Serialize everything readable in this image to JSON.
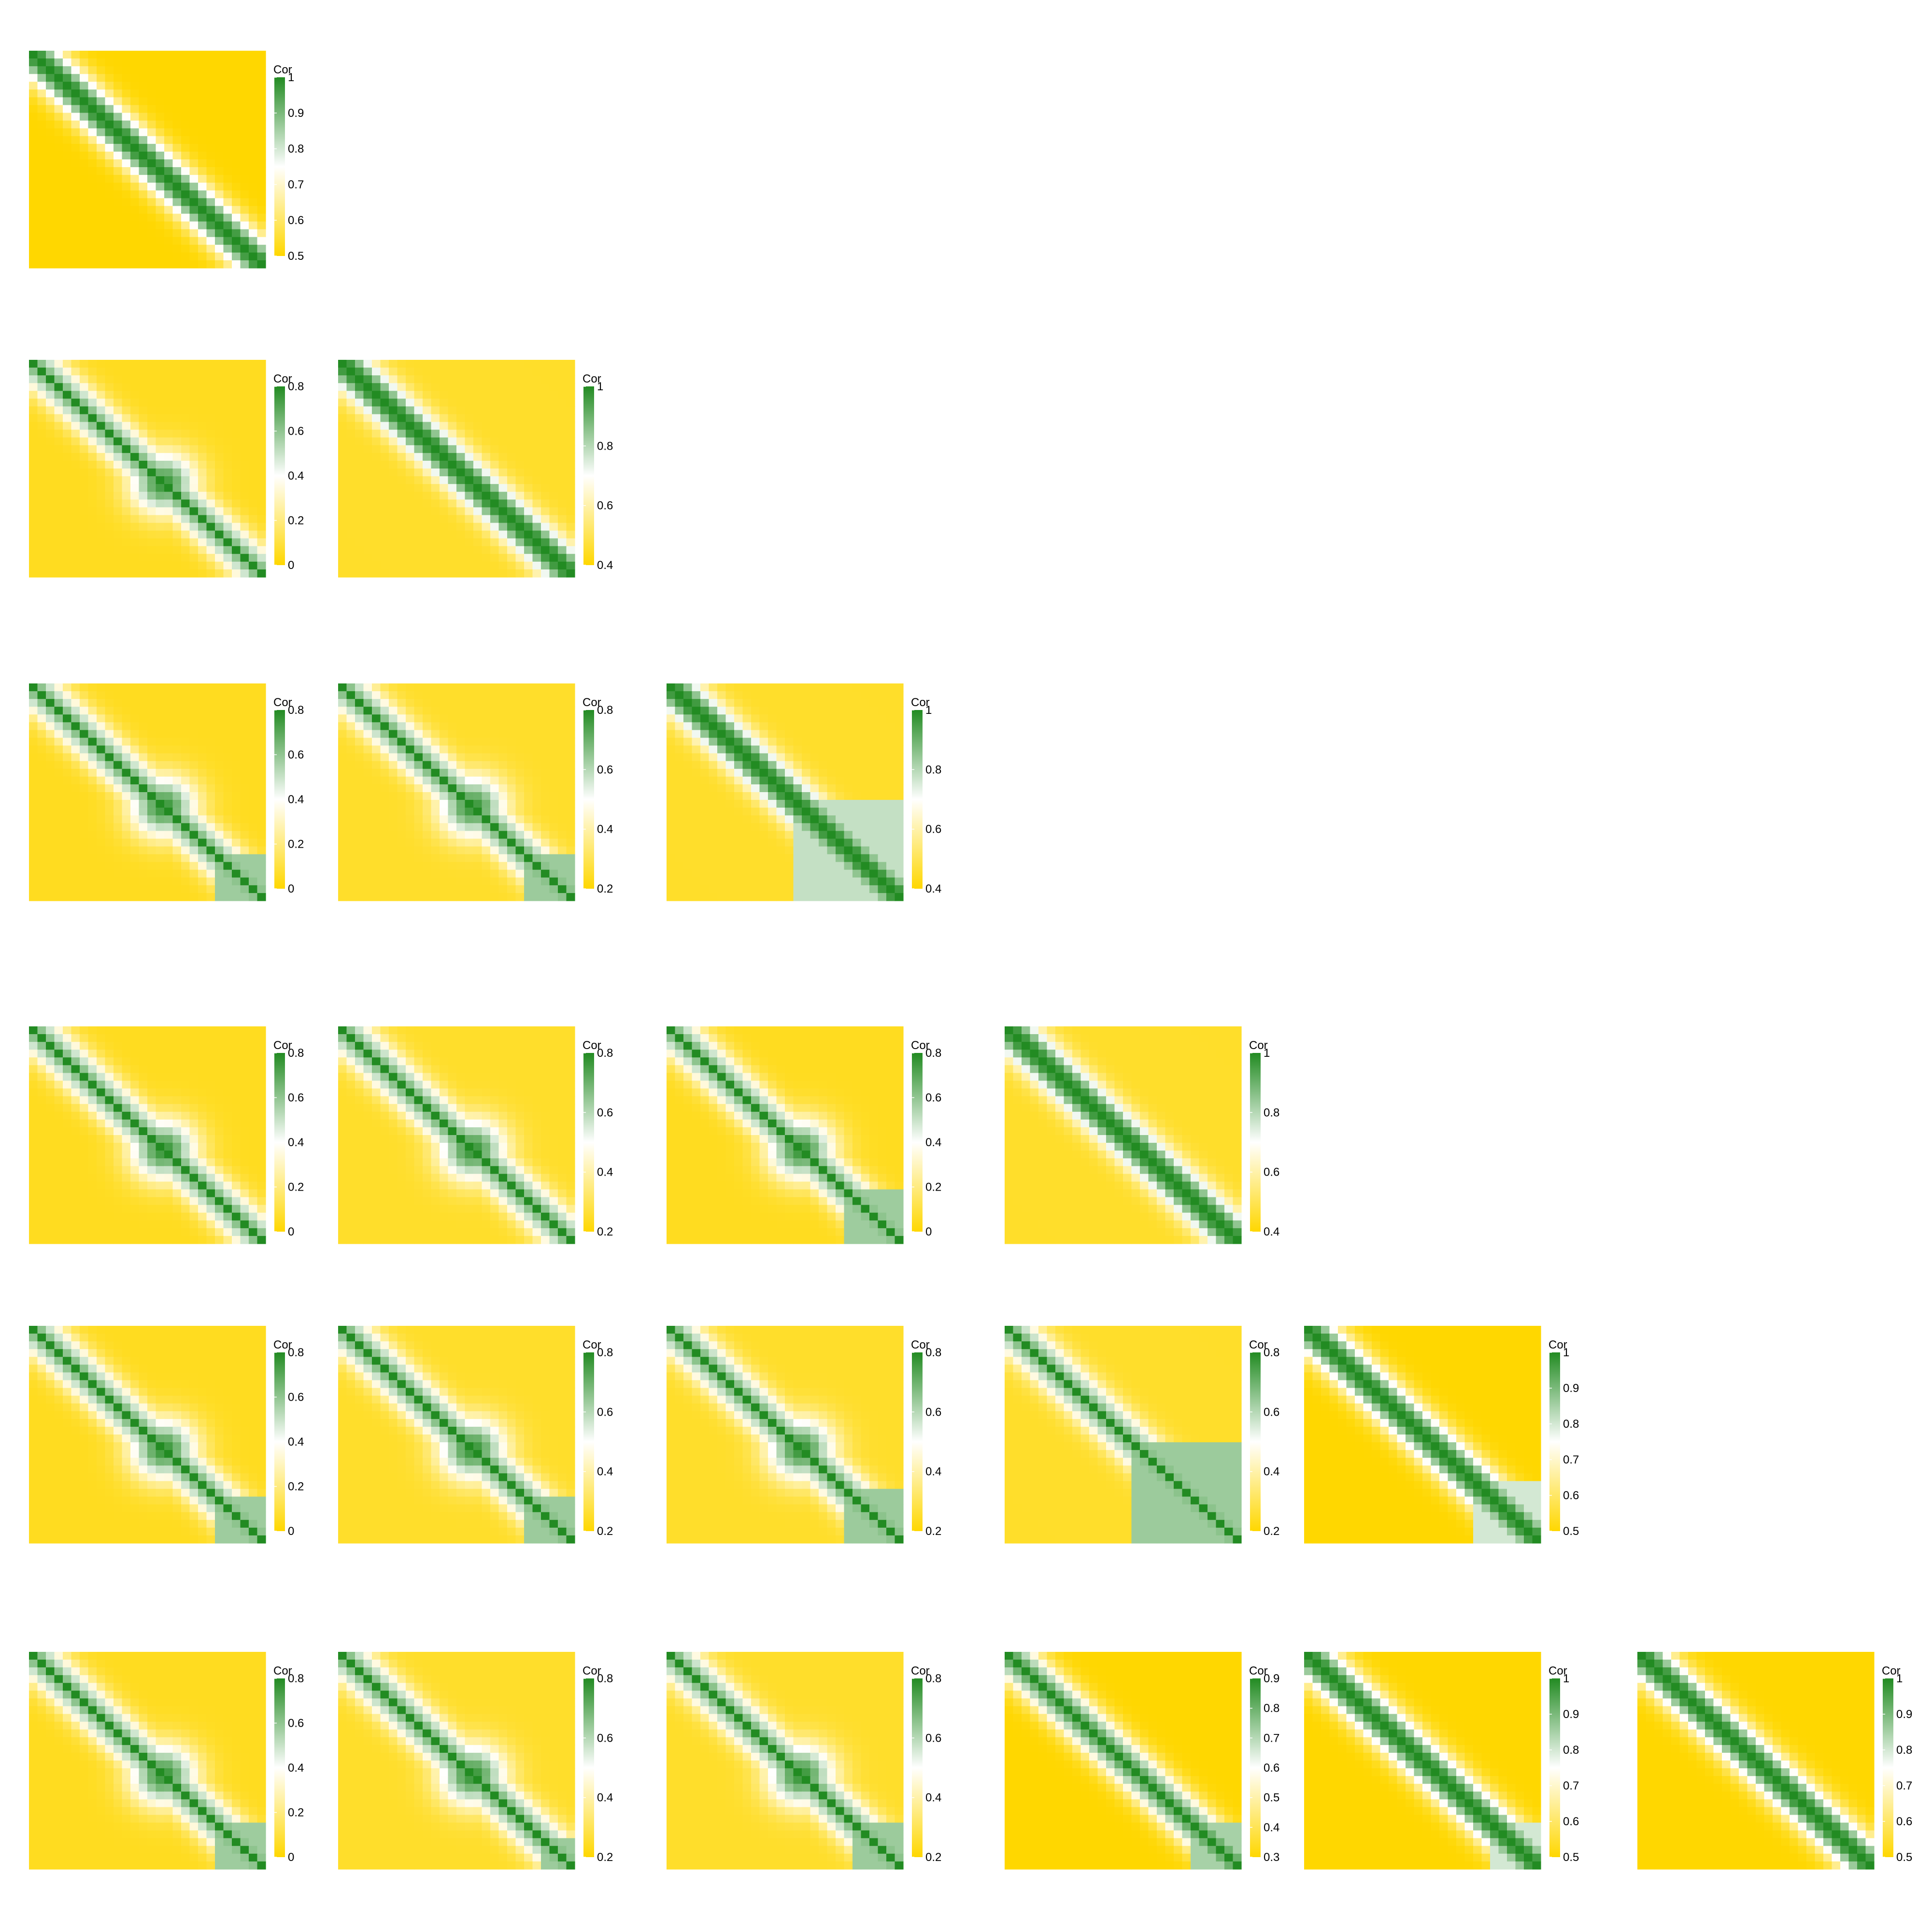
{
  "colors": {
    "low": "#ffd700",
    "mid": "#ffffff",
    "high": "#228b22"
  },
  "legend_title": "Cor",
  "chart_data": [
    {
      "type": "heatmap",
      "row": 1,
      "col": 1,
      "legend_ticks": [
        "0.5",
        "0.6",
        "0.7",
        "0.8",
        "0.9",
        "1"
      ],
      "scale": [
        0.5,
        1
      ],
      "min_corr": 0.5,
      "width": 0.12,
      "contrast": 1,
      "dominant": 0,
      "lower": 0.6,
      "off_split": 0
    },
    {
      "type": "heatmap",
      "row": 2,
      "col": 1,
      "legend_ticks": [
        "0",
        "0.2",
        "0.4",
        "0.6",
        "0.8"
      ],
      "scale": [
        0,
        0.8
      ],
      "min_corr": 0.05,
      "width": 0.12,
      "contrast": 0.8,
      "dominant": 0.55,
      "lower": 0.7,
      "off_split": 0
    },
    {
      "type": "heatmap",
      "row": 2,
      "col": 2,
      "legend_ticks": [
        "0.4",
        "0.6",
        "0.8",
        "1"
      ],
      "scale": [
        0.4,
        1
      ],
      "min_corr": 0.45,
      "width": 0.12,
      "contrast": 1,
      "dominant": 0,
      "lower": 0.6,
      "off_split": 0
    },
    {
      "type": "heatmap",
      "row": 3,
      "col": 1,
      "legend_ticks": [
        "0",
        "0.2",
        "0.4",
        "0.6",
        "0.8"
      ],
      "scale": [
        0,
        0.8
      ],
      "min_corr": 0.05,
      "width": 0.12,
      "contrast": 0.8,
      "dominant": 0.55,
      "lower": 0.7,
      "off_split": 0.8
    },
    {
      "type": "heatmap",
      "row": 3,
      "col": 2,
      "legend_ticks": [
        "0.2",
        "0.4",
        "0.6",
        "0.8"
      ],
      "scale": [
        0.2,
        0.8
      ],
      "min_corr": 0.25,
      "width": 0.12,
      "contrast": 0.8,
      "dominant": 0.55,
      "lower": 0.7,
      "off_split": 0.8
    },
    {
      "type": "heatmap",
      "row": 3,
      "col": 3,
      "legend_ticks": [
        "0.4",
        "0.6",
        "0.8",
        "1"
      ],
      "scale": [
        0.4,
        1
      ],
      "min_corr": 0.45,
      "width": 0.12,
      "contrast": 1,
      "dominant": 0,
      "lower": 0.6,
      "off_split": 0.55
    },
    {
      "type": "heatmap",
      "row": 4,
      "col": 1,
      "legend_ticks": [
        "0",
        "0.2",
        "0.4",
        "0.6",
        "0.8"
      ],
      "scale": [
        0,
        0.8
      ],
      "min_corr": 0.05,
      "width": 0.12,
      "contrast": 0.8,
      "dominant": 0.55,
      "lower": 0.7,
      "off_split": 0
    },
    {
      "type": "heatmap",
      "row": 4,
      "col": 2,
      "legend_ticks": [
        "0.2",
        "0.4",
        "0.6",
        "0.8"
      ],
      "scale": [
        0.2,
        0.8
      ],
      "min_corr": 0.25,
      "width": 0.12,
      "contrast": 0.8,
      "dominant": 0.55,
      "lower": 0.7,
      "off_split": 0
    },
    {
      "type": "heatmap",
      "row": 4,
      "col": 3,
      "legend_ticks": [
        "0",
        "0.2",
        "0.4",
        "0.6",
        "0.8"
      ],
      "scale": [
        0,
        0.8
      ],
      "min_corr": 0.05,
      "width": 0.12,
      "contrast": 0.8,
      "dominant": 0.55,
      "lower": 0.7,
      "off_split": 0.75
    },
    {
      "type": "heatmap",
      "row": 4,
      "col": 4,
      "legend_ticks": [
        "0.4",
        "0.6",
        "0.8",
        "1"
      ],
      "scale": [
        0.4,
        1
      ],
      "min_corr": 0.45,
      "width": 0.12,
      "contrast": 1,
      "dominant": 0,
      "lower": 0.6,
      "off_split": 0
    },
    {
      "type": "heatmap",
      "row": 5,
      "col": 1,
      "legend_ticks": [
        "0",
        "0.2",
        "0.4",
        "0.6",
        "0.8"
      ],
      "scale": [
        0,
        0.8
      ],
      "min_corr": 0.05,
      "width": 0.12,
      "contrast": 0.8,
      "dominant": 0.55,
      "lower": 0.7,
      "off_split": 0.8
    },
    {
      "type": "heatmap",
      "row": 5,
      "col": 2,
      "legend_ticks": [
        "0.2",
        "0.4",
        "0.6",
        "0.8"
      ],
      "scale": [
        0.2,
        0.8
      ],
      "min_corr": 0.25,
      "width": 0.12,
      "contrast": 0.8,
      "dominant": 0.55,
      "lower": 0.7,
      "off_split": 0.8
    },
    {
      "type": "heatmap",
      "row": 5,
      "col": 3,
      "legend_ticks": [
        "0.2",
        "0.4",
        "0.6",
        "0.8"
      ],
      "scale": [
        0.2,
        0.8
      ],
      "min_corr": 0.25,
      "width": 0.12,
      "contrast": 0.8,
      "dominant": 0.55,
      "lower": 0.7,
      "off_split": 0.75
    },
    {
      "type": "heatmap",
      "row": 5,
      "col": 4,
      "legend_ticks": [
        "0.2",
        "0.4",
        "0.6",
        "0.8"
      ],
      "scale": [
        0.2,
        0.8
      ],
      "min_corr": 0.25,
      "width": 0.12,
      "contrast": 0.8,
      "dominant": 0,
      "lower": 0.7,
      "off_split": 0.55
    },
    {
      "type": "heatmap",
      "row": 5,
      "col": 5,
      "legend_ticks": [
        "0.5",
        "0.6",
        "0.7",
        "0.8",
        "0.9",
        "1"
      ],
      "scale": [
        0.5,
        1
      ],
      "min_corr": 0.5,
      "width": 0.12,
      "contrast": 1,
      "dominant": 0,
      "lower": 0.6,
      "off_split": 0.72
    },
    {
      "type": "heatmap",
      "row": 6,
      "col": 1,
      "legend_ticks": [
        "0",
        "0.2",
        "0.4",
        "0.6",
        "0.8"
      ],
      "scale": [
        0,
        0.8
      ],
      "min_corr": 0.05,
      "width": 0.12,
      "contrast": 0.8,
      "dominant": 0.55,
      "lower": 0.7,
      "off_split": 0.8
    },
    {
      "type": "heatmap",
      "row": 6,
      "col": 2,
      "legend_ticks": [
        "0.2",
        "0.4",
        "0.6",
        "0.8"
      ],
      "scale": [
        0.2,
        0.8
      ],
      "min_corr": 0.25,
      "width": 0.12,
      "contrast": 0.8,
      "dominant": 0.55,
      "lower": 0.7,
      "off_split": 0.85
    },
    {
      "type": "heatmap",
      "row": 6,
      "col": 3,
      "legend_ticks": [
        "0.2",
        "0.4",
        "0.6",
        "0.8"
      ],
      "scale": [
        0.2,
        0.8
      ],
      "min_corr": 0.25,
      "width": 0.12,
      "contrast": 0.8,
      "dominant": 0.55,
      "lower": 0.7,
      "off_split": 0.8
    },
    {
      "type": "heatmap",
      "row": 6,
      "col": 4,
      "legend_ticks": [
        "0.3",
        "0.4",
        "0.5",
        "0.6",
        "0.7",
        "0.8",
        "0.9"
      ],
      "scale": [
        0.3,
        0.9
      ],
      "min_corr": 0.3,
      "width": 0.12,
      "contrast": 0.9,
      "dominant": 0,
      "lower": 0.7,
      "off_split": 0.8
    },
    {
      "type": "heatmap",
      "row": 6,
      "col": 5,
      "legend_ticks": [
        "0.5",
        "0.6",
        "0.7",
        "0.8",
        "0.9",
        "1"
      ],
      "scale": [
        0.5,
        1
      ],
      "min_corr": 0.5,
      "width": 0.12,
      "contrast": 1,
      "dominant": 0,
      "lower": 0.6,
      "off_split": 0.78
    },
    {
      "type": "heatmap",
      "row": 6,
      "col": 6,
      "legend_ticks": [
        "0.5",
        "0.6",
        "0.7",
        "0.8",
        "0.9",
        "1"
      ],
      "scale": [
        0.5,
        1
      ],
      "min_corr": 0.5,
      "width": 0.12,
      "contrast": 1,
      "dominant": 0,
      "lower": 0.6,
      "off_split": 0.88
    }
  ]
}
